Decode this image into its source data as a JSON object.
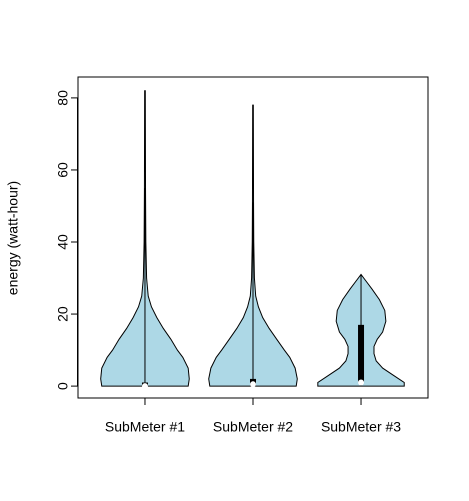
{
  "chart_data": {
    "type": "violin",
    "ylabel": "energy (watt-hour)",
    "categories": [
      "SubMeter #1",
      "SubMeter #2",
      "SubMeter #3"
    ],
    "color": "#add8e6",
    "ylim": [
      -3.3,
      85.8
    ],
    "yticks": [
      0,
      20,
      40,
      60,
      80
    ],
    "xlim": [
      0.38,
      3.62
    ],
    "violins": [
      {
        "density_y": [
          0,
          2,
          5,
          8,
          10,
          13,
          16,
          19,
          22,
          25,
          30,
          40,
          55,
          82
        ],
        "density_width": [
          0.4,
          0.41,
          0.4,
          0.35,
          0.3,
          0.24,
          0.17,
          0.11,
          0.06,
          0.03,
          0.015,
          0.008,
          0.005,
          0.003
        ],
        "whisker": [
          0,
          55
        ],
        "box": [
          0,
          1
        ],
        "median": 0
      },
      {
        "density_y": [
          0,
          2,
          5,
          8,
          10,
          13,
          16,
          19,
          22,
          25,
          30,
          40,
          51,
          78
        ],
        "density_width": [
          0.4,
          0.41,
          0.39,
          0.34,
          0.29,
          0.22,
          0.15,
          0.09,
          0.05,
          0.025,
          0.013,
          0.007,
          0.005,
          0.003
        ],
        "whisker": [
          0,
          51
        ],
        "box": [
          0,
          2
        ],
        "median": 0.5
      },
      {
        "density_y": [
          0,
          1,
          3,
          5,
          7,
          9,
          11,
          13,
          15,
          18,
          21,
          24,
          27,
          29,
          31
        ],
        "density_width": [
          0.4,
          0.4,
          0.3,
          0.2,
          0.14,
          0.12,
          0.12,
          0.15,
          0.2,
          0.23,
          0.22,
          0.17,
          0.1,
          0.05,
          0
        ],
        "whisker": [
          0,
          31
        ],
        "box": [
          1,
          17
        ],
        "median": 1
      }
    ]
  }
}
